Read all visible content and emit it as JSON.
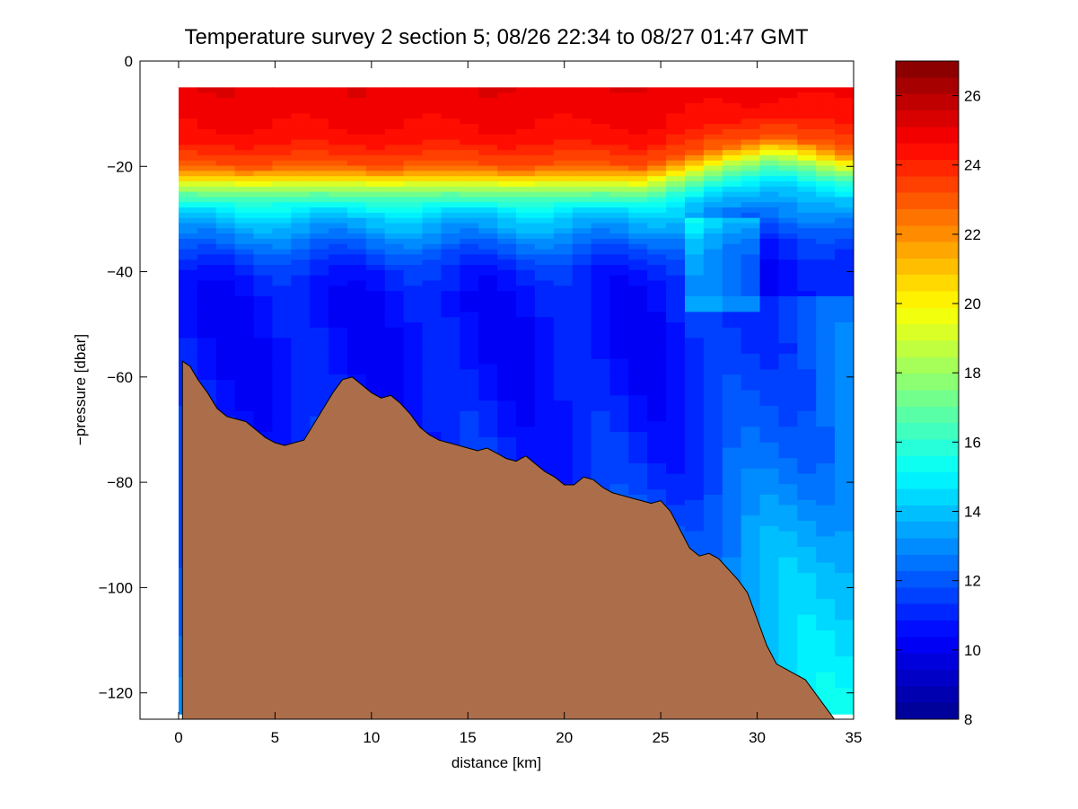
{
  "chart_data": {
    "type": "heatmap",
    "title": "Temperature survey 2 section 5; 08/26 22:34 to 08/27 01:47 GMT",
    "xlabel": "distance [km]",
    "ylabel": "−pressure [dbar]",
    "xlim": [
      -2,
      35
    ],
    "ylim": [
      -125,
      0
    ],
    "x_ticks": [
      0,
      5,
      10,
      15,
      20,
      25,
      30,
      35
    ],
    "x_tick_labels": [
      "0",
      "5",
      "10",
      "15",
      "20",
      "25",
      "30",
      "35"
    ],
    "y_ticks": [
      0,
      -20,
      -40,
      -60,
      -80,
      -100,
      -120
    ],
    "y_tick_labels": [
      "0",
      "−20",
      "−40",
      "−60",
      "−80",
      "−100",
      "−120"
    ],
    "colorbar": {
      "range": [
        8,
        27
      ],
      "ticks": [
        8,
        10,
        12,
        14,
        16,
        18,
        20,
        22,
        24,
        26
      ],
      "tick_labels": [
        "8",
        "10",
        "12",
        "14",
        "16",
        "18",
        "20",
        "22",
        "24",
        "26"
      ],
      "colormap": "jet",
      "levels": 40
    },
    "colormap_stops": [
      "#00008f",
      "#0000ff",
      "#00ffff",
      "#ffff00",
      "#ff0000",
      "#800000"
    ],
    "bathymetry_color": "#ac6e4a",
    "grid": false,
    "data_extent": {
      "x": [
        0,
        35
      ],
      "y": [
        -124,
        -5
      ]
    },
    "bathymetry": {
      "x": [
        0.2,
        0.6,
        1.0,
        1.5,
        2.0,
        2.5,
        3.0,
        3.5,
        4.0,
        4.5,
        5.0,
        5.5,
        6.0,
        6.5,
        7.0,
        7.5,
        8.0,
        8.5,
        9.0,
        9.5,
        10.0,
        10.5,
        11.0,
        11.5,
        12.0,
        12.5,
        13.0,
        13.5,
        14.0,
        14.5,
        15.0,
        15.5,
        16.0,
        16.5,
        17.0,
        17.5,
        18.0,
        18.5,
        19.0,
        19.5,
        20.0,
        20.5,
        21.0,
        21.5,
        22.0,
        22.5,
        23.0,
        23.5,
        24.0,
        24.5,
        25.0,
        25.5,
        26.0,
        26.5,
        27.0,
        27.5,
        28.0,
        28.5,
        29.0,
        29.5,
        30.0,
        30.5,
        31.0,
        31.5,
        32.0,
        32.5,
        33.0,
        33.5,
        34.0
      ],
      "y": [
        -57,
        -58,
        -60.5,
        -63,
        -66,
        -67.5,
        -68,
        -68.5,
        -70,
        -71.5,
        -72.5,
        -73,
        -72.5,
        -72,
        -69,
        -66,
        -63,
        -60.5,
        -60,
        -61.5,
        -63,
        -64,
        -63.5,
        -65,
        -67,
        -69.5,
        -71,
        -72,
        -72.5,
        -73,
        -73.5,
        -74,
        -73.5,
        -74.5,
        -75.5,
        -76,
        -75,
        -76.5,
        -78,
        -79,
        -80.5,
        -80.5,
        -79,
        -79.5,
        -81,
        -82,
        -82.5,
        -83,
        -83.5,
        -84,
        -83.5,
        -85.5,
        -89,
        -92.5,
        -94,
        -93.5,
        -94.5,
        -96.5,
        -98.5,
        -101,
        -106,
        -111,
        -114.5,
        -115.5,
        -116.5,
        -117.5,
        -120,
        -122.5,
        -125
      ]
    },
    "temperature_profile": {
      "depth": [
        -5,
        -10,
        -15,
        -20,
        -22,
        -24,
        -26,
        -28,
        -30,
        -33,
        -36,
        -40,
        -45,
        -50,
        -60,
        -80,
        -100,
        -124
      ],
      "temperature": [
        25.0,
        24.8,
        24.4,
        23.0,
        21.0,
        18.5,
        16.5,
        15.0,
        14.0,
        13.0,
        12.0,
        11.0,
        10.6,
        10.5,
        10.6,
        11.2,
        12.5,
        13.2
      ]
    },
    "sampling": {
      "columns": 36,
      "rows": 120
    }
  }
}
